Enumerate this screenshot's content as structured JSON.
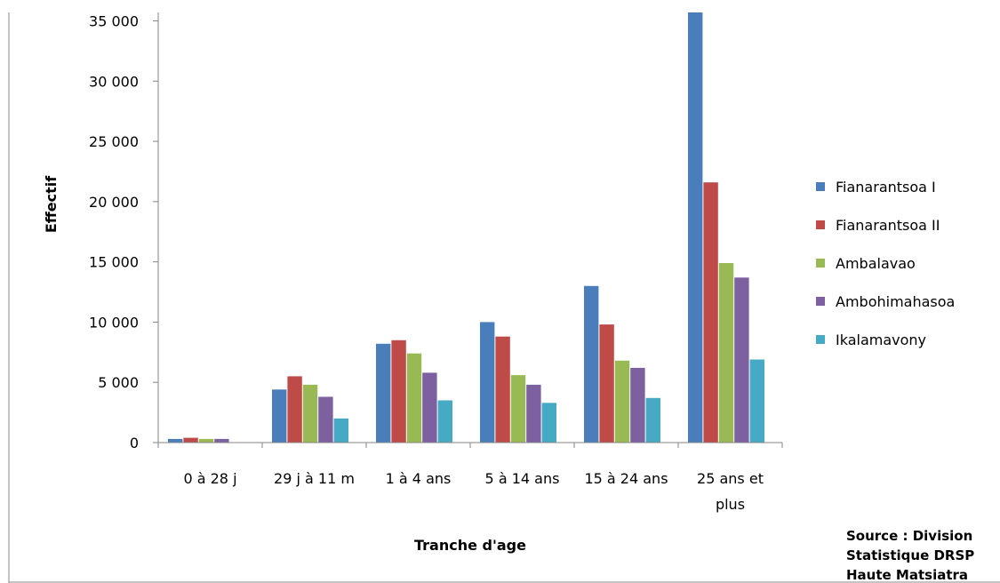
{
  "chart_data": {
    "type": "bar",
    "title": "",
    "xlabel": "Tranche d'age",
    "ylabel": "Effectif",
    "ylim": [
      0,
      35000
    ],
    "yticks": [
      "0",
      "5 000",
      "10 000",
      "15 000",
      "20 000",
      "25 000",
      "30 000",
      "35 000"
    ],
    "yticks_values": [
      0,
      5000,
      10000,
      15000,
      20000,
      25000,
      30000,
      35000
    ],
    "categories": [
      [
        "0 à 28 j"
      ],
      [
        "29 j à 11 m"
      ],
      [
        "1 à 4 ans"
      ],
      [
        "5 à 14 ans"
      ],
      [
        "15 à 24 ans"
      ],
      [
        "25 ans et",
        "plus"
      ]
    ],
    "series": [
      {
        "name": "Fianarantsoa I",
        "color": "#4a7ebb",
        "values": [
          300,
          4400,
          8200,
          10000,
          13000,
          35700
        ]
      },
      {
        "name": "Fianarantsoa II",
        "color": "#be4b48",
        "values": [
          400,
          5500,
          8500,
          8800,
          9800,
          21600
        ]
      },
      {
        "name": "Ambalavao",
        "color": "#98b954",
        "values": [
          300,
          4800,
          7400,
          5600,
          6800,
          14900
        ]
      },
      {
        "name": "Ambohimahasoa",
        "color": "#7d60a0",
        "values": [
          300,
          3800,
          5800,
          4800,
          6200,
          13700
        ]
      },
      {
        "name": "Ikalamavony",
        "color": "#46aac5",
        "values": [
          0,
          2000,
          3500,
          3300,
          3700,
          6900
        ]
      }
    ],
    "grid": false,
    "legend": "right"
  },
  "source_note": [
    "Source : Division",
    "Statistique DRSP",
    "Haute Matsiatra"
  ]
}
